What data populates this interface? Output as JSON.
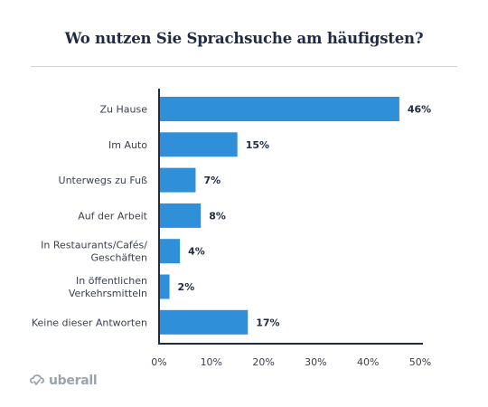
{
  "chart_data": {
    "type": "bar",
    "orientation": "horizontal",
    "title": "Wo nutzen Sie Sprachsuche am häufigsten?",
    "categories": [
      [
        "Zu Hause"
      ],
      [
        "Im Auto"
      ],
      [
        "Unterwegs zu Fuß"
      ],
      [
        "Auf der Arbeit"
      ],
      [
        "In Restaurants/Cafés/",
        "Geschäften"
      ],
      [
        "In öffentlichen",
        "Verkehrsmitteln"
      ],
      [
        "Keine dieser Antworten"
      ]
    ],
    "values": [
      46,
      15,
      7,
      8,
      4,
      2,
      17
    ],
    "value_labels": [
      "46%",
      "15%",
      "7%",
      "8%",
      "4%",
      "2%",
      "17%"
    ],
    "xlim": [
      0,
      50
    ],
    "xticks": [
      "0%",
      "10%",
      "20%",
      "30%",
      "40%",
      "50%"
    ],
    "bar_color": "#2f8fd8",
    "axis_color": "#1f2a44",
    "grid": false
  },
  "logo": {
    "name": "uberall-logo-icon",
    "text": "uberall"
  }
}
